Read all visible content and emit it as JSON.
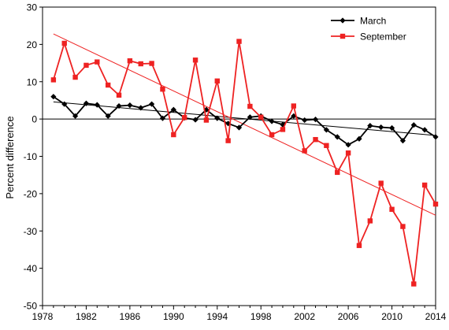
{
  "chart_data": {
    "type": "line",
    "title": "",
    "xlabel": "",
    "ylabel": "Percent difference",
    "xlim": [
      1978,
      2014
    ],
    "ylim": [
      -50,
      30
    ],
    "x_ticks": [
      1978,
      1982,
      1986,
      1990,
      1994,
      1998,
      2002,
      2006,
      2010,
      2014
    ],
    "y_ticks": [
      30,
      20,
      10,
      0,
      -10,
      -20,
      -30,
      -40,
      -50
    ],
    "grid": false,
    "zero_line": true,
    "legend_position": "top-right",
    "series": [
      {
        "name": "March",
        "color": "#000000",
        "marker": "diamond",
        "x": [
          1979,
          1980,
          1981,
          1982,
          1983,
          1984,
          1985,
          1986,
          1987,
          1988,
          1989,
          1990,
          1991,
          1992,
          1993,
          1994,
          1995,
          1996,
          1997,
          1998,
          1999,
          2000,
          2001,
          2002,
          2003,
          2004,
          2005,
          2006,
          2007,
          2008,
          2009,
          2010,
          2011,
          2012,
          2013,
          2014
        ],
        "values": [
          6.0,
          4.0,
          0.8,
          4.2,
          3.8,
          0.8,
          3.5,
          3.7,
          3.0,
          4.0,
          0.2,
          2.5,
          0.3,
          -0.2,
          2.5,
          0.2,
          -1.2,
          -2.3,
          0.5,
          0.8,
          -0.6,
          -1.5,
          0.8,
          -0.3,
          -0.1,
          -2.9,
          -4.8,
          -6.9,
          -5.3,
          -1.8,
          -2.2,
          -2.4,
          -5.8,
          -1.6,
          -2.9,
          -4.8
        ],
        "trend": [
          4.6,
          -4.4
        ]
      },
      {
        "name": "September",
        "color": "#ee2222",
        "marker": "square",
        "x": [
          1979,
          1980,
          1981,
          1982,
          1983,
          1984,
          1985,
          1986,
          1987,
          1988,
          1989,
          1990,
          1991,
          1992,
          1993,
          1994,
          1995,
          1996,
          1997,
          1998,
          1999,
          2000,
          2001,
          2002,
          2003,
          2004,
          2005,
          2006,
          2007,
          2008,
          2009,
          2010,
          2011,
          2012,
          2013,
          2014
        ],
        "values": [
          10.5,
          20.3,
          11.2,
          14.4,
          15.3,
          9.1,
          6.4,
          15.6,
          14.8,
          14.9,
          8.0,
          -4.2,
          0.4,
          15.8,
          -0.3,
          10.2,
          -5.8,
          20.8,
          3.4,
          0.5,
          -4.2,
          -2.8,
          3.5,
          -8.5,
          -5.5,
          -7.1,
          -14.3,
          -9.1,
          -33.9,
          -27.3,
          -17.2,
          -24.2,
          -28.8,
          -44.2,
          -17.7,
          -22.8
        ],
        "trend": [
          22.8,
          -25.8
        ]
      }
    ]
  }
}
